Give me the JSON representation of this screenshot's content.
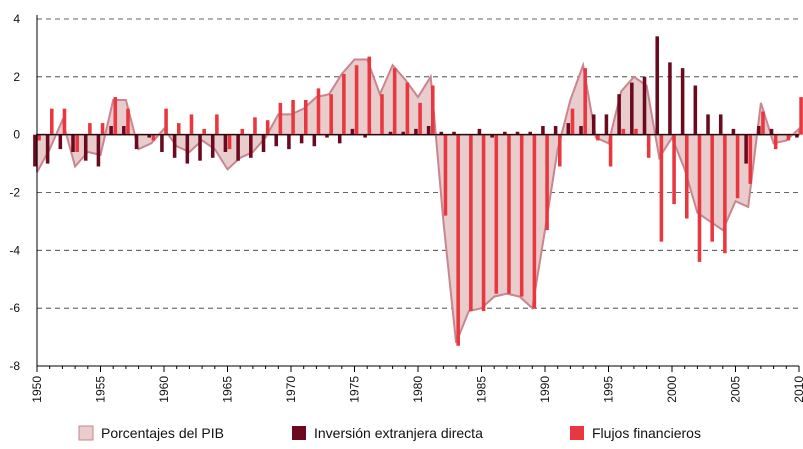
{
  "chart_data": {
    "type": "bar_area",
    "x": [
      1950,
      1951,
      1952,
      1953,
      1954,
      1955,
      1956,
      1957,
      1958,
      1959,
      1960,
      1961,
      1962,
      1963,
      1964,
      1965,
      1966,
      1967,
      1968,
      1969,
      1970,
      1971,
      1972,
      1973,
      1974,
      1975,
      1976,
      1977,
      1978,
      1979,
      1980,
      1981,
      1982,
      1983,
      1984,
      1985,
      1986,
      1987,
      1988,
      1989,
      1990,
      1991,
      1992,
      1993,
      1994,
      1995,
      1996,
      1997,
      1998,
      1999,
      2000,
      2001,
      2002,
      2003,
      2004,
      2005,
      2006,
      2007,
      2008,
      2009,
      2010
    ],
    "series": [
      {
        "name": "Porcentajes del PIB",
        "kind": "area",
        "color": "#e9cccc",
        "values": [
          -1.3,
          -0.5,
          0.5,
          -1.1,
          -0.6,
          -0.7,
          1.2,
          1.2,
          -0.5,
          -0.3,
          0.2,
          -0.4,
          -0.6,
          -0.2,
          -0.5,
          -1.2,
          -0.8,
          -0.6,
          -0.1,
          0.7,
          0.7,
          0.9,
          1.3,
          1.4,
          2.1,
          2.6,
          2.6,
          1.4,
          2.4,
          1.9,
          1.3,
          2.0,
          -3.0,
          -7.2,
          -6.1,
          -6.0,
          -5.6,
          -5.5,
          -5.6,
          -6.0,
          -3.3,
          -0.5,
          1.2,
          2.4,
          -0.1,
          -0.3,
          1.5,
          2.0,
          1.7,
          -0.8,
          -0.1,
          -1.2,
          -2.7,
          -3.0,
          -3.3,
          -2.3,
          -2.5,
          1.1,
          -0.3,
          -0.2,
          0.2
        ]
      },
      {
        "name": "Inversión extranjera directa",
        "kind": "bar",
        "color": "#6b0a1e",
        "values": [
          -1.1,
          -1.0,
          -0.5,
          -0.6,
          -0.9,
          -1.1,
          0.3,
          0.3,
          -0.5,
          -0.1,
          -0.6,
          -0.8,
          -1.0,
          -0.9,
          -0.8,
          -0.6,
          -0.9,
          -0.8,
          -0.6,
          -0.4,
          -0.5,
          -0.3,
          -0.4,
          -0.1,
          -0.3,
          0.2,
          -0.1,
          0.0,
          0.1,
          0.1,
          0.2,
          0.3,
          0.1,
          0.1,
          0.0,
          0.2,
          -0.1,
          0.1,
          0.1,
          0.1,
          0.3,
          0.3,
          0.4,
          0.3,
          0.7,
          0.7,
          1.4,
          1.8,
          2.0,
          3.4,
          2.5,
          2.3,
          1.7,
          0.7,
          0.7,
          0.2,
          -1.0,
          0.3,
          0.2,
          0.0,
          -0.1
        ]
      },
      {
        "name": "Flujos financieros",
        "kind": "bar",
        "color": "#e8373e",
        "values": [
          -0.2,
          0.9,
          0.9,
          -0.6,
          0.4,
          0.4,
          1.3,
          0.9,
          0.0,
          -0.2,
          0.9,
          0.4,
          0.7,
          0.2,
          0.7,
          -0.5,
          0.2,
          0.6,
          0.5,
          1.1,
          1.2,
          1.2,
          1.6,
          1.4,
          2.1,
          2.4,
          2.7,
          1.4,
          2.3,
          1.8,
          1.1,
          1.7,
          -2.8,
          -7.3,
          -6.1,
          -6.1,
          -5.5,
          -5.5,
          -5.6,
          -6.0,
          -3.3,
          -1.1,
          0.9,
          2.3,
          -0.2,
          -1.1,
          0.2,
          0.2,
          -0.8,
          -3.7,
          -2.4,
          -2.9,
          -4.4,
          -3.7,
          -4.1,
          -2.2,
          -1.7,
          0.8,
          -0.5,
          -0.2,
          1.3
        ]
      }
    ],
    "xlim": [
      1950,
      2010
    ],
    "xticks": [
      1950,
      1955,
      1960,
      1965,
      1970,
      1975,
      1980,
      1985,
      1990,
      1995,
      2000,
      2005,
      2010
    ],
    "ylim": [
      -8,
      4
    ],
    "yticks": [
      -8,
      -6,
      -4,
      -2,
      0,
      2,
      4
    ],
    "grid": true,
    "legend": "bottom"
  }
}
